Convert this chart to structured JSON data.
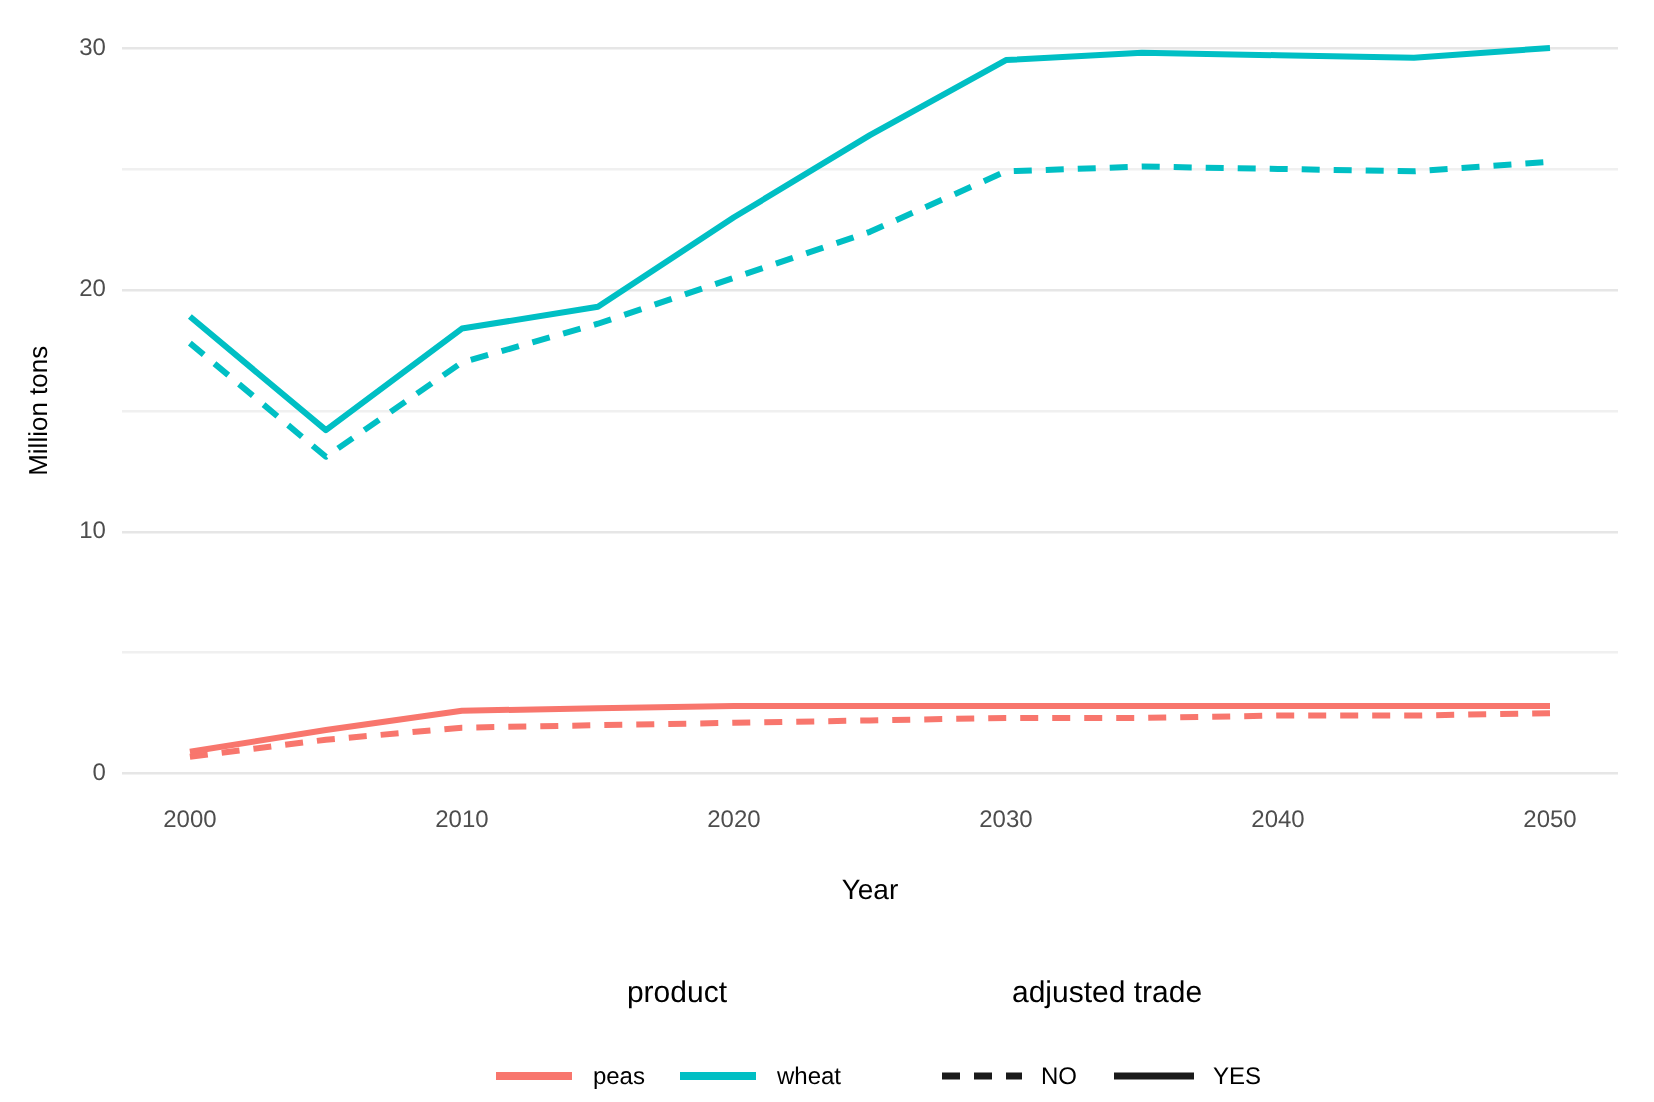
{
  "chart_data": {
    "type": "line",
    "xlabel": "Year",
    "ylabel": "Million tons",
    "legend_title": "product",
    "x": [
      2000,
      2005,
      2010,
      2015,
      2020,
      2025,
      2030,
      2035,
      2040,
      2045,
      2050
    ],
    "series": [
      {
        "name": "peas",
        "color": "#f8766d",
        "line_style": "solid",
        "values": [
          0.9,
          1.8,
          2.6,
          2.7,
          2.8,
          2.8,
          2.8,
          2.8,
          2.8,
          2.8,
          2.8
        ]
      },
      {
        "name": "wheat",
        "color": "#00bfc4",
        "line_style": "solid",
        "values": [
          18.9,
          14.2,
          18.4,
          19.3,
          23.0,
          26.4,
          29.5,
          29.8,
          29.7,
          29.6,
          30.0
        ]
      },
      {
        "color": "#f8766d",
        "line_style": "dashed",
        "values": [
          0.7,
          1.4,
          1.9,
          2.0,
          2.1,
          2.2,
          2.3,
          2.3,
          2.4,
          2.4,
          2.5
        ]
      },
      {
        "color": "#00bfc4",
        "line_style": "dashed",
        "values": [
          17.8,
          13.1,
          17.0,
          18.6,
          20.5,
          22.4,
          24.9,
          25.1,
          25.0,
          24.9,
          25.3
        ]
      }
    ],
    "annotations": [
      "adjusted trade",
      "NO",
      "YES"
    ],
    "xlim": [
      1997.5,
      2052.5
    ],
    "xticks": [
      2000,
      2010,
      2020,
      2030,
      2040,
      2050
    ],
    "ylim": [
      0,
      30
    ],
    "yticks": [
      0,
      {
        "value": 5,
        "label": null
      },
      10,
      {
        "value": 15,
        "label": null
      },
      20,
      {
        "value": 25,
        "label": null
      },
      30
    ],
    "grid": "y",
    "legend": "bottom",
    "marker": "none"
  }
}
